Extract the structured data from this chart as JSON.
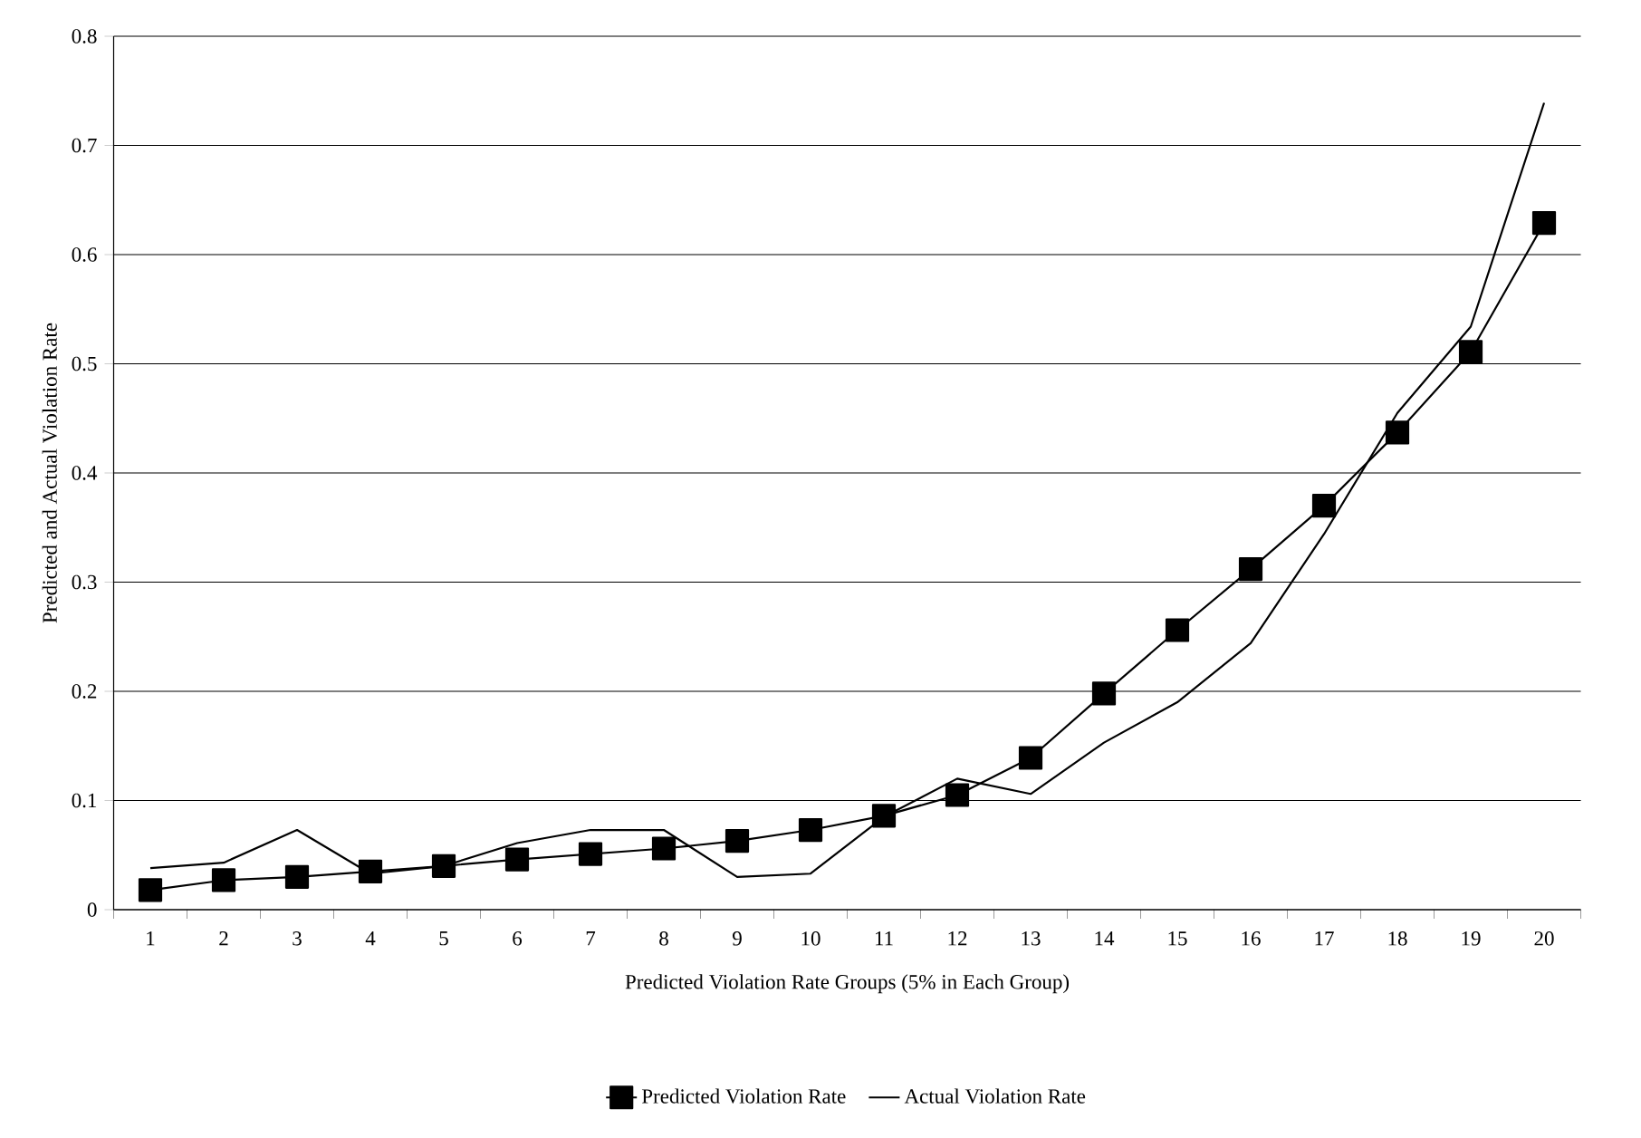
{
  "chart_data": {
    "type": "line",
    "xlabel": "Predicted Violation Rate Groups (5% in Each Group)",
    "ylabel": "Predicted and Actual Violation Rate",
    "categories": [
      "1",
      "2",
      "3",
      "4",
      "5",
      "6",
      "7",
      "8",
      "9",
      "10",
      "11",
      "12",
      "13",
      "14",
      "15",
      "16",
      "17",
      "18",
      "19",
      "20"
    ],
    "series": [
      {
        "name": "Predicted Violation Rate",
        "color": "#000000",
        "marker": "square",
        "values": [
          0.018,
          0.027,
          0.03,
          0.035,
          0.04,
          0.046,
          0.051,
          0.056,
          0.063,
          0.073,
          0.086,
          0.105,
          0.139,
          0.198,
          0.256,
          0.312,
          0.37,
          0.437,
          0.511,
          0.629
        ]
      },
      {
        "name": "Actual Violation Rate",
        "color": "#000000",
        "marker": "none",
        "values": [
          0.038,
          0.043,
          0.073,
          0.033,
          0.04,
          0.061,
          0.073,
          0.073,
          0.03,
          0.033,
          0.085,
          0.12,
          0.106,
          0.153,
          0.19,
          0.244,
          0.344,
          0.455,
          0.534,
          0.739
        ]
      }
    ],
    "ylim": [
      0,
      0.8
    ],
    "yticks": [
      0,
      0.1,
      0.2,
      0.3,
      0.4,
      0.5,
      0.6,
      0.7,
      0.8
    ],
    "grid": "y",
    "legend": "bottom"
  }
}
